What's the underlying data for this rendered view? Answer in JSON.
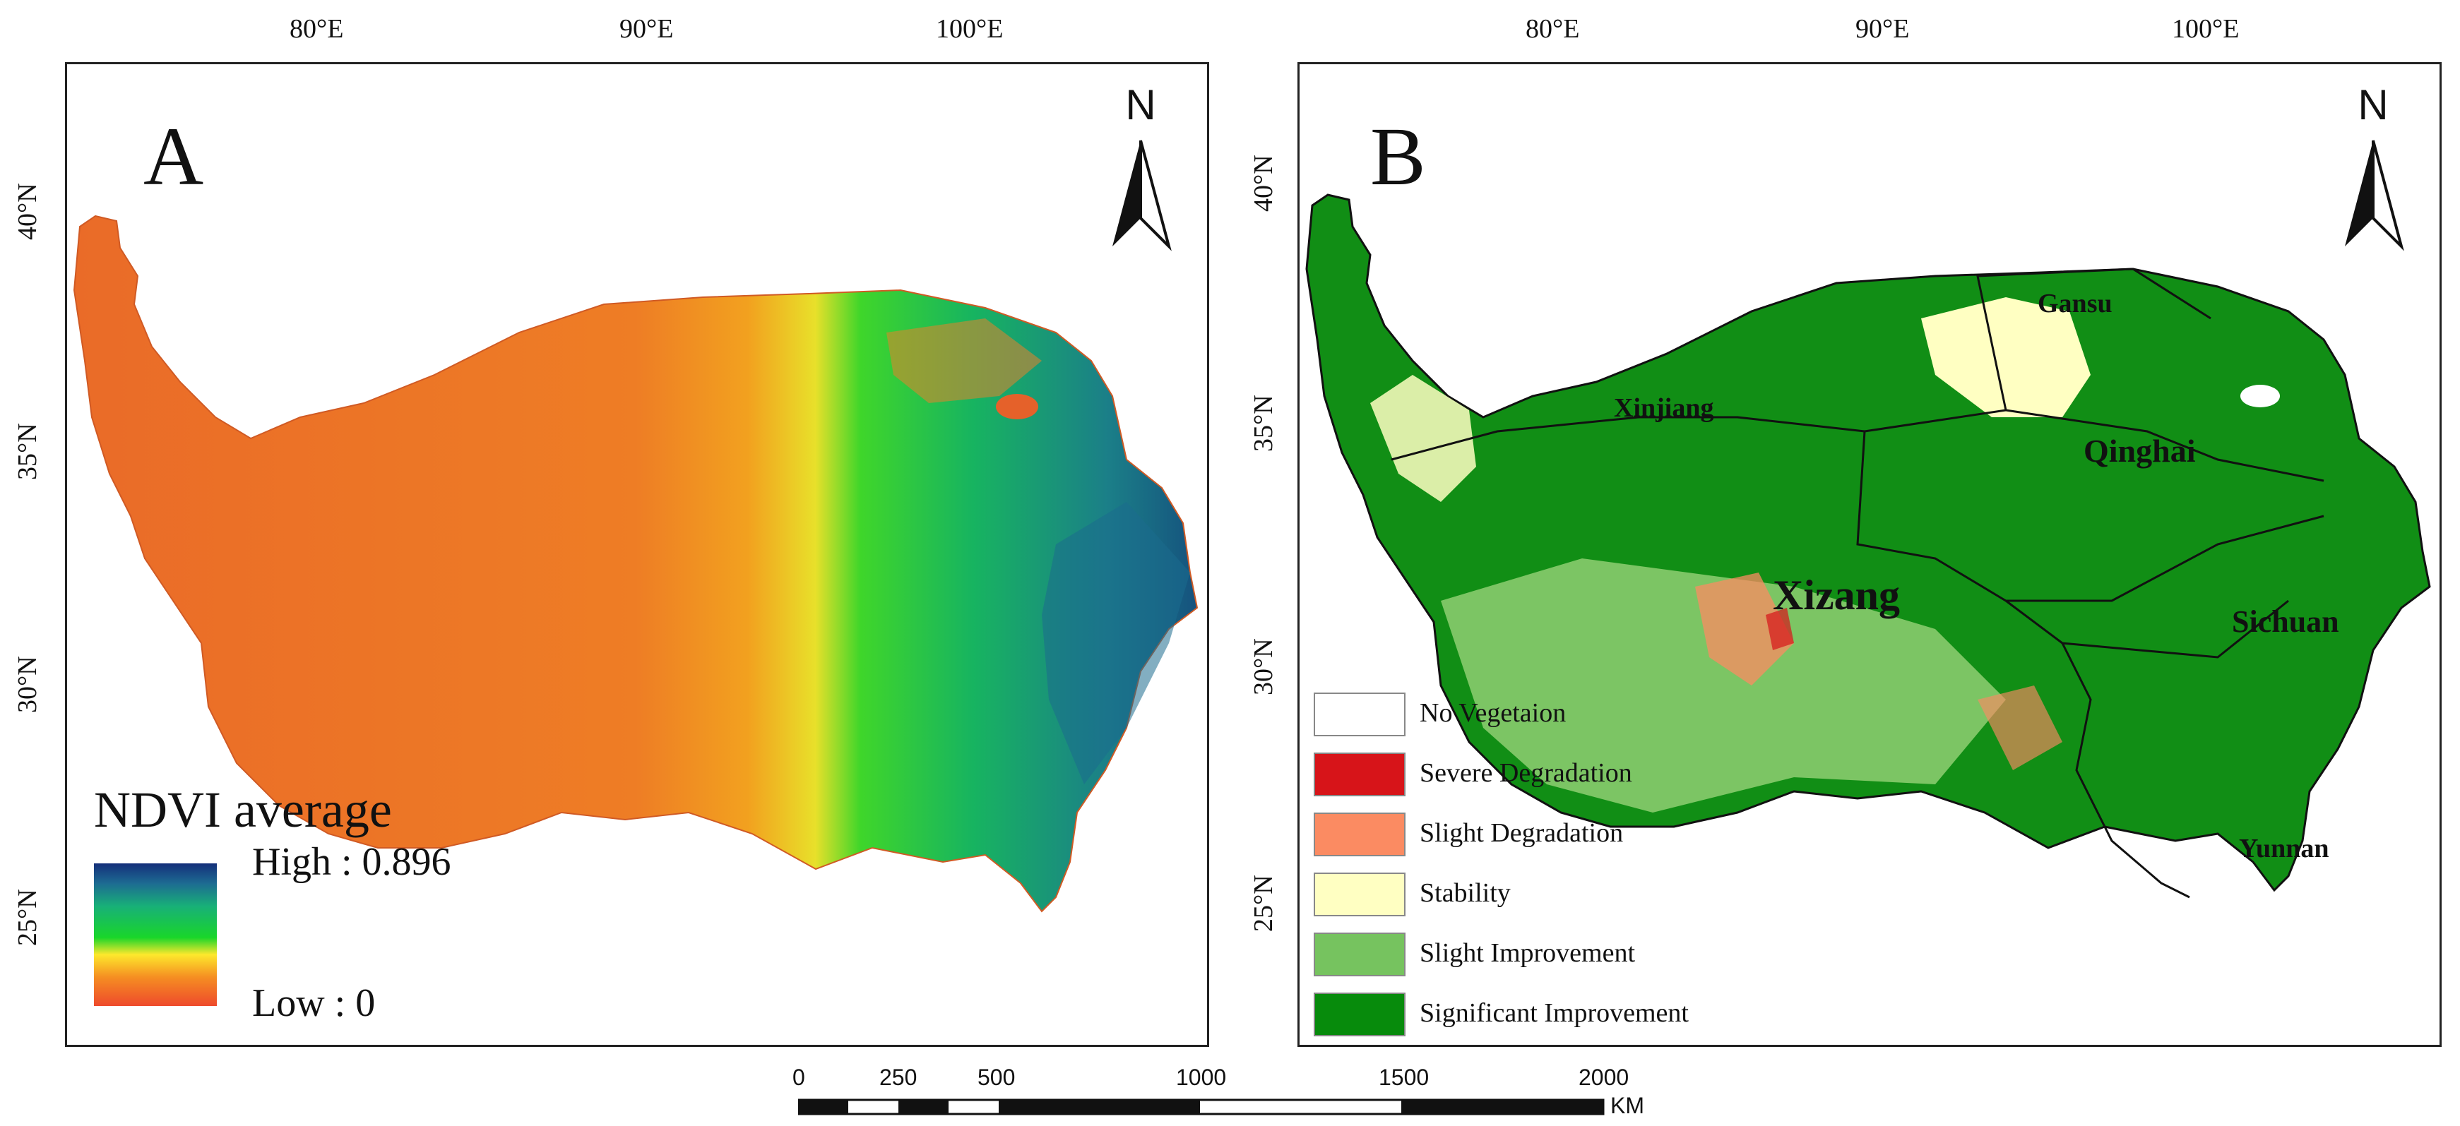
{
  "panel_a": {
    "label": "A",
    "north_label": "N",
    "lon_labels": [
      "80°E",
      "90°E",
      "100°E"
    ],
    "lat_labels": [
      "40°N",
      "35°N",
      "30°N",
      "25°N"
    ],
    "legend": {
      "title": "NDVI average",
      "high_label": "High : 0.896",
      "low_label": "Low : 0",
      "high_value": 0.896,
      "low_value": 0,
      "ramp_colors": [
        "#ee4a2c",
        "#f58d22",
        "#fde82c",
        "#19d62a",
        "#18b078",
        "#1d6b92",
        "#142f7a"
      ]
    }
  },
  "panel_b": {
    "label": "B",
    "north_label": "N",
    "lon_labels": [
      "80°E",
      "90°E",
      "100°E"
    ],
    "lat_labels": [
      "40°N",
      "35°N",
      "30°N",
      "25°N"
    ],
    "provinces": [
      "Gansu",
      "Xinjiang",
      "Qinghai",
      "Xizang",
      "Sichuan",
      "Yunnan"
    ],
    "legend": [
      {
        "label": "No Vegetaion",
        "color": "#ffffff"
      },
      {
        "label": "Severe Degradation",
        "color": "#d71419"
      },
      {
        "label": "Slight Degradation",
        "color": "#fb8b62"
      },
      {
        "label": "Stability",
        "color": "#ffffc2"
      },
      {
        "label": "Slight Improvement",
        "color": "#76c35f"
      },
      {
        "label": "Significant Improvement",
        "color": "#078b0c"
      }
    ]
  },
  "scale_bar": {
    "ticks": [
      "0",
      "250",
      "500",
      "1000",
      "1500",
      "2000"
    ],
    "unit": "KM"
  }
}
